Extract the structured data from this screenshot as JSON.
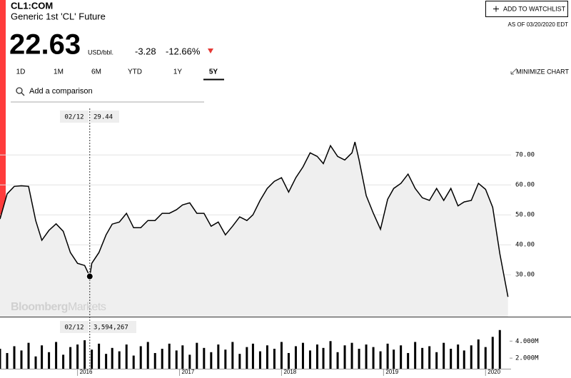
{
  "header": {
    "symbol": "CL1:COM",
    "name": "Generic 1st 'CL' Future",
    "price": "22.63",
    "unit": "USD/bbl.",
    "change": "-3.28",
    "change_pct": "-12.66%",
    "watchlist": "ADD TO WATCHLIST",
    "as_of": "AS OF 03/20/2020 EDT"
  },
  "tabs": {
    "items": [
      "1D",
      "1M",
      "6M",
      "YTD",
      "1Y",
      "5Y"
    ],
    "active": "5Y"
  },
  "minimize": "MINIMIZE CHART",
  "comparison": "Add a comparison",
  "watermark": {
    "brand": "Bloomberg",
    "product": "Markets"
  },
  "crosshair": {
    "date": "02/12",
    "price": "29.44",
    "volume": "3,594,267"
  },
  "chart_data": [
    {
      "type": "line",
      "color": "#000000",
      "area_color": "#efefef",
      "x": [
        2015.24,
        2015.31,
        2015.38,
        2015.45,
        2015.52,
        2015.59,
        2015.65,
        2015.72,
        2015.79,
        2015.86,
        2015.93,
        2016.0,
        2016.07,
        2016.12,
        2016.14,
        2016.21,
        2016.28,
        2016.34,
        2016.41,
        2016.48,
        2016.55,
        2016.62,
        2016.69,
        2016.76,
        2016.83,
        2016.9,
        2016.97,
        2017.03,
        2017.1,
        2017.17,
        2017.24,
        2017.31,
        2017.38,
        2017.45,
        2017.52,
        2017.59,
        2017.66,
        2017.72,
        2017.79,
        2017.86,
        2017.93,
        2018.0,
        2018.07,
        2018.14,
        2018.21,
        2018.28,
        2018.35,
        2018.41,
        2018.48,
        2018.55,
        2018.62,
        2018.69,
        2018.72,
        2018.76,
        2018.83,
        2018.9,
        2018.97,
        2019.04,
        2019.1,
        2019.17,
        2019.24,
        2019.31,
        2019.38,
        2019.45,
        2019.52,
        2019.59,
        2019.66,
        2019.73,
        2019.79,
        2019.86,
        2019.93,
        2020.0,
        2020.07,
        2020.14,
        2020.22
      ],
      "values": [
        48.6,
        57,
        59.5,
        59.7,
        59.5,
        48.1,
        41.5,
        44.8,
        47,
        44.5,
        37.4,
        33.8,
        33.1,
        29.44,
        33.8,
        37.4,
        43.3,
        46.9,
        47.6,
        50.5,
        45.7,
        45.7,
        48.1,
        48.1,
        50.5,
        50.5,
        51.7,
        53.3,
        54,
        50.5,
        50.5,
        46.2,
        47.6,
        43.3,
        46.2,
        49.3,
        48.1,
        50,
        54.8,
        58.8,
        61.2,
        62.4,
        57.6,
        62.4,
        66,
        70.7,
        69.5,
        67.1,
        73.1,
        69.5,
        68.3,
        70.7,
        74.3,
        68.3,
        56.4,
        50.5,
        45.2,
        55.2,
        58.8,
        60.5,
        63.6,
        58.8,
        55.7,
        54.8,
        58.8,
        54.8,
        58.8,
        53,
        54.3,
        54.8,
        60.5,
        58.5,
        52.5,
        37,
        22.63
      ],
      "xlim": [
        2015.24,
        2020.25
      ],
      "ylim": [
        16,
        86
      ],
      "xticks": [
        2016,
        2017,
        2018,
        2019,
        2020
      ],
      "yticks": [
        {
          "value": 30,
          "label": "30.00"
        },
        {
          "value": 40,
          "label": "40.00"
        },
        {
          "value": 50,
          "label": "50.00"
        },
        {
          "value": 60,
          "label": "60.00"
        },
        {
          "value": 70,
          "label": "70.00"
        }
      ],
      "grid": true
    },
    {
      "type": "bar",
      "color": "#000000",
      "x": [
        2015.24,
        2015.31,
        2015.38,
        2015.45,
        2015.52,
        2015.59,
        2015.65,
        2015.72,
        2015.79,
        2015.86,
        2015.93,
        2016.0,
        2016.07,
        2016.14,
        2016.21,
        2016.28,
        2016.34,
        2016.41,
        2016.48,
        2016.55,
        2016.62,
        2016.69,
        2016.76,
        2016.83,
        2016.9,
        2016.97,
        2017.03,
        2017.1,
        2017.17,
        2017.24,
        2017.31,
        2017.38,
        2017.45,
        2017.52,
        2017.59,
        2017.66,
        2017.72,
        2017.79,
        2017.86,
        2017.93,
        2018.0,
        2018.07,
        2018.14,
        2018.21,
        2018.28,
        2018.35,
        2018.41,
        2018.48,
        2018.55,
        2018.62,
        2018.69,
        2018.76,
        2018.83,
        2018.9,
        2018.97,
        2019.04,
        2019.1,
        2019.17,
        2019.24,
        2019.31,
        2019.38,
        2019.45,
        2019.52,
        2019.59,
        2019.66,
        2019.73,
        2019.79,
        2019.86,
        2019.93,
        2020.0,
        2020.07,
        2020.14
      ],
      "values": [
        3100000,
        2600000,
        3400000,
        2900000,
        3800000,
        2200000,
        3500000,
        2700000,
        3900000,
        2400000,
        3300000,
        3600000,
        4100000,
        3000000,
        3700000,
        2500000,
        3200000,
        2800000,
        3600000,
        2300000,
        3400000,
        3900000,
        2600000,
        3100000,
        3700000,
        2900000,
        3500000,
        2400000,
        3800000,
        3200000,
        2700000,
        3600000,
        3000000,
        3900000,
        2500000,
        3300000,
        3700000,
        2800000,
        3500000,
        3100000,
        3900000,
        2600000,
        3400000,
        3800000,
        2900000,
        3600000,
        3200000,
        4000000,
        2700000,
        3500000,
        3800000,
        3100000,
        3600000,
        3300000,
        2800000,
        3700000,
        3000000,
        3500000,
        2600000,
        3900000,
        3200000,
        3400000,
        2700000,
        3800000,
        3100000,
        3600000,
        2900000,
        3500000,
        4200000,
        3300000,
        4500000,
        5300000
      ],
      "xlim": [
        2015.24,
        2020.25
      ],
      "ylim": [
        0,
        5700000
      ],
      "yticks": [
        {
          "value": 2000000,
          "label": "2.000M"
        },
        {
          "value": 4000000,
          "label": "4.000M"
        }
      ]
    }
  ]
}
